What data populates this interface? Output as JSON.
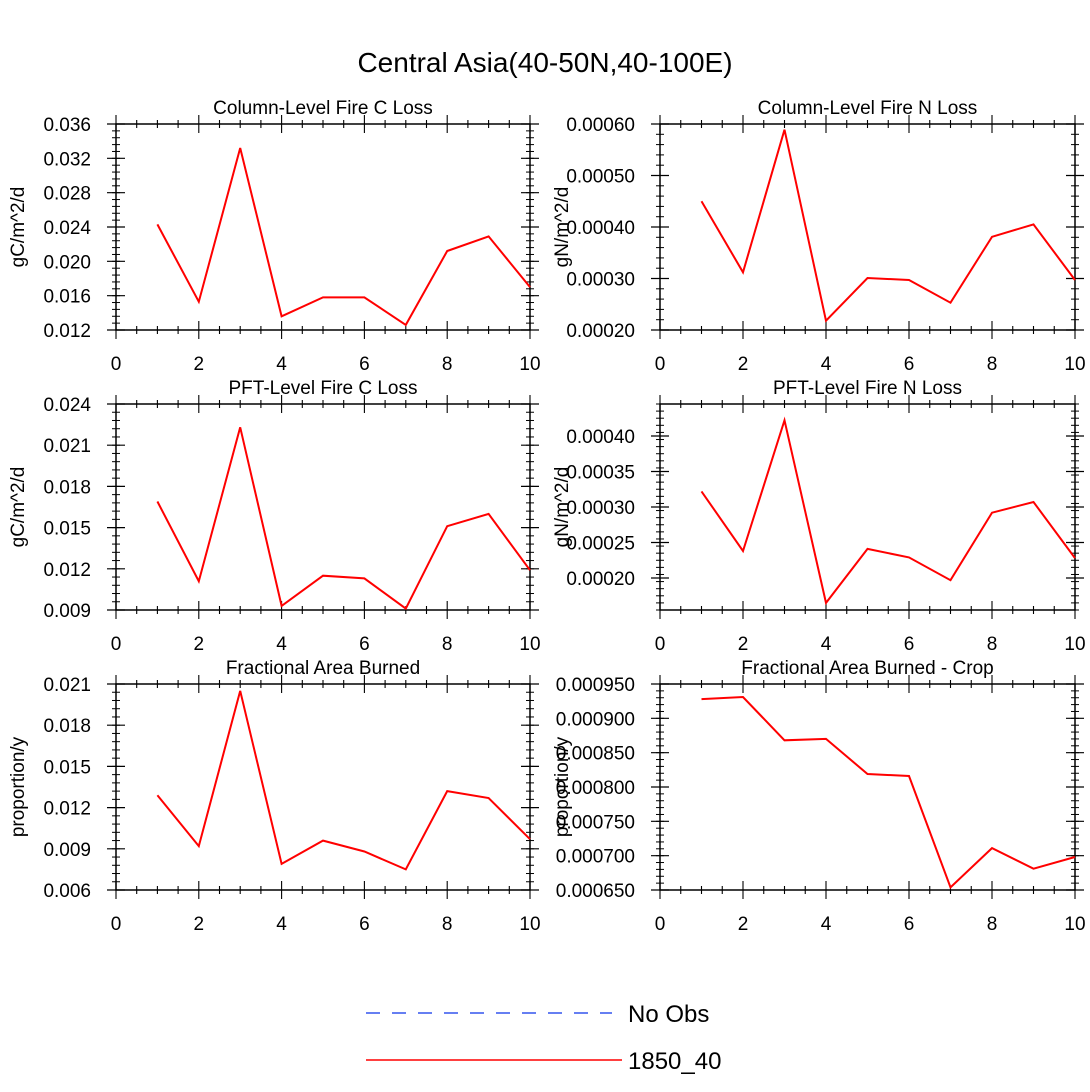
{
  "figure_title": "Central Asia(40-50N,40-100E)",
  "legend": {
    "items": [
      {
        "label": "No Obs",
        "color": "#3355ee",
        "style": "dashed"
      },
      {
        "label": "1850_40",
        "color": "#ff0000",
        "style": "solid"
      }
    ]
  },
  "chart_data": [
    {
      "type": "line",
      "title": "Column-Level Fire C Loss",
      "xlabel": "",
      "ylabel": "gC/m^2/d",
      "xlim": [
        0,
        10
      ],
      "ylim": [
        0.012,
        0.036
      ],
      "xticks": [
        0,
        2,
        4,
        6,
        8,
        10
      ],
      "xtick_labels": [
        "0",
        "2",
        "4",
        "6",
        "8",
        "10"
      ],
      "yticks": [
        0.012,
        0.016,
        0.02,
        0.024,
        0.028,
        0.032,
        0.036
      ],
      "ytick_labels": [
        "0.012",
        "0.016",
        "0.020",
        "0.024",
        "0.028",
        "0.032",
        "0.036"
      ],
      "yminor_step": 0.0008,
      "series": [
        {
          "name": "1850_40",
          "color": "#ff0000",
          "x": [
            1,
            2,
            3,
            4,
            5,
            6,
            7,
            8,
            9,
            10
          ],
          "y": [
            0.0243,
            0.0153,
            0.0332,
            0.0136,
            0.0158,
            0.0158,
            0.0126,
            0.0212,
            0.0229,
            0.017
          ]
        }
      ]
    },
    {
      "type": "line",
      "title": "Column-Level Fire N Loss",
      "xlabel": "",
      "ylabel": "gN/m^2/d",
      "xlim": [
        0,
        10
      ],
      "ylim": [
        0.0002,
        0.0006
      ],
      "xticks": [
        0,
        2,
        4,
        6,
        8,
        10
      ],
      "xtick_labels": [
        "0",
        "2",
        "4",
        "6",
        "8",
        "10"
      ],
      "yticks": [
        0.0002,
        0.0003,
        0.0004,
        0.0005,
        0.0006
      ],
      "ytick_labels": [
        "0.00020",
        "0.00030",
        "0.00040",
        "0.00050",
        "0.00060"
      ],
      "yminor_step": 2e-05,
      "series": [
        {
          "name": "1850_40",
          "color": "#ff0000",
          "x": [
            1,
            2,
            3,
            4,
            5,
            6,
            7,
            8,
            9,
            10
          ],
          "y": [
            0.00045,
            0.000312,
            0.000589,
            0.000218,
            0.000301,
            0.000297,
            0.000253,
            0.000381,
            0.000405,
            0.000297
          ]
        }
      ]
    },
    {
      "type": "line",
      "title": "PFT-Level Fire C Loss",
      "xlabel": "",
      "ylabel": "gC/m^2/d",
      "xlim": [
        0,
        10
      ],
      "ylim": [
        0.009,
        0.024
      ],
      "xticks": [
        0,
        2,
        4,
        6,
        8,
        10
      ],
      "xtick_labels": [
        "0",
        "2",
        "4",
        "6",
        "8",
        "10"
      ],
      "yticks": [
        0.009,
        0.012,
        0.015,
        0.018,
        0.021,
        0.024
      ],
      "ytick_labels": [
        "0.009",
        "0.012",
        "0.015",
        "0.018",
        "0.021",
        "0.024"
      ],
      "yminor_step": 0.0006,
      "series": [
        {
          "name": "1850_40",
          "color": "#ff0000",
          "x": [
            1,
            2,
            3,
            4,
            5,
            6,
            7,
            8,
            9,
            10
          ],
          "y": [
            0.0169,
            0.0111,
            0.0223,
            0.0093,
            0.0115,
            0.0113,
            0.0091,
            0.0151,
            0.016,
            0.0119
          ]
        }
      ]
    },
    {
      "type": "line",
      "title": "PFT-Level Fire N Loss",
      "xlabel": "",
      "ylabel": "gN/m^2/d",
      "xlim": [
        0,
        10
      ],
      "ylim": [
        0.000155,
        0.000445
      ],
      "xticks": [
        0,
        2,
        4,
        6,
        8,
        10
      ],
      "xtick_labels": [
        "0",
        "2",
        "4",
        "6",
        "8",
        "10"
      ],
      "yticks": [
        0.0002,
        0.00025,
        0.0003,
        0.00035,
        0.0004
      ],
      "ytick_labels": [
        "0.00020",
        "0.00025",
        "0.00030",
        "0.00035",
        "0.00040"
      ],
      "yminor_step": 1e-05,
      "series": [
        {
          "name": "1850_40",
          "color": "#ff0000",
          "x": [
            1,
            2,
            3,
            4,
            5,
            6,
            7,
            8,
            9,
            10
          ],
          "y": [
            0.000322,
            0.000238,
            0.000422,
            0.000165,
            0.000241,
            0.000229,
            0.000197,
            0.000292,
            0.000307,
            0.000228
          ]
        }
      ]
    },
    {
      "type": "line",
      "title": "Fractional Area Burned",
      "xlabel": "",
      "ylabel": "proportion/y",
      "xlim": [
        0,
        10
      ],
      "ylim": [
        0.006,
        0.021
      ],
      "xticks": [
        0,
        2,
        4,
        6,
        8,
        10
      ],
      "xtick_labels": [
        "0",
        "2",
        "4",
        "6",
        "8",
        "10"
      ],
      "yticks": [
        0.006,
        0.009,
        0.012,
        0.015,
        0.018,
        0.021
      ],
      "ytick_labels": [
        "0.006",
        "0.009",
        "0.012",
        "0.015",
        "0.018",
        "0.021"
      ],
      "yminor_step": 0.0006,
      "series": [
        {
          "name": "1850_40",
          "color": "#ff0000",
          "x": [
            1,
            2,
            3,
            4,
            5,
            6,
            7,
            8,
            9,
            10
          ],
          "y": [
            0.0129,
            0.0092,
            0.0205,
            0.0079,
            0.0096,
            0.0088,
            0.0075,
            0.0132,
            0.0127,
            0.0097
          ]
        }
      ]
    },
    {
      "type": "line",
      "title": "Fractional Area Burned - Crop",
      "xlabel": "",
      "ylabel": "proportion/y",
      "xlim": [
        0,
        10
      ],
      "ylim": [
        0.00065,
        0.00095
      ],
      "xticks": [
        0,
        2,
        4,
        6,
        8,
        10
      ],
      "xtick_labels": [
        "0",
        "2",
        "4",
        "6",
        "8",
        "10"
      ],
      "yticks": [
        0.00065,
        0.0007,
        0.00075,
        0.0008,
        0.00085,
        0.0009,
        0.00095
      ],
      "ytick_labels": [
        "0.000650",
        "0.000700",
        "0.000750",
        "0.000800",
        "0.000850",
        "0.000900",
        "0.000950"
      ],
      "yminor_step": 1e-05,
      "series": [
        {
          "name": "1850_40",
          "color": "#ff0000",
          "x": [
            1,
            2,
            3,
            4,
            5,
            6,
            7,
            8,
            9,
            10
          ],
          "y": [
            0.000928,
            0.000931,
            0.000868,
            0.00087,
            0.000819,
            0.000816,
            0.000654,
            0.000711,
            0.000681,
            0.000698
          ]
        }
      ]
    }
  ]
}
